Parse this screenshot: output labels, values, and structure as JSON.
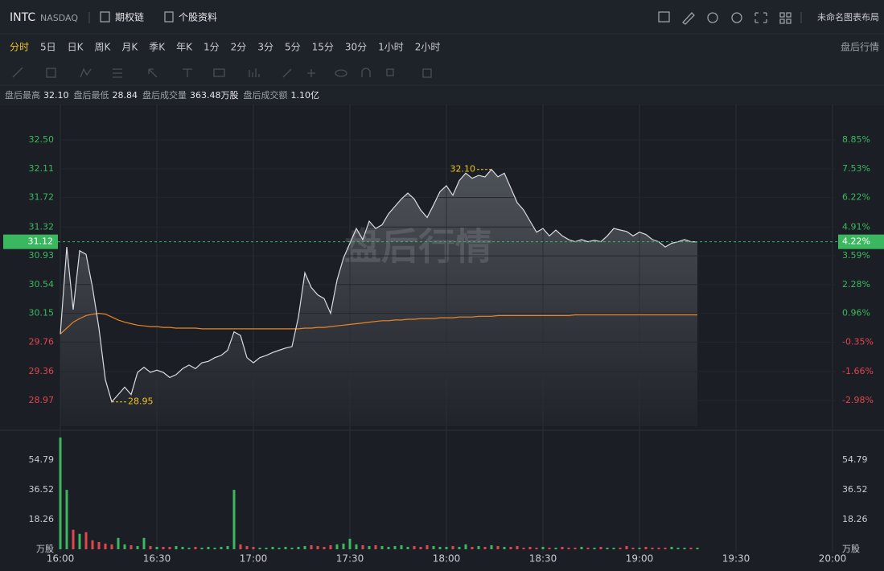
{
  "header": {
    "symbol": "INTC",
    "exchange": "NASDAQ",
    "links": [
      "期权链",
      "个股资料"
    ],
    "layout_name": "未命名图表布局"
  },
  "tabs": {
    "items": [
      "分时",
      "5日",
      "日K",
      "周K",
      "月K",
      "季K",
      "年K",
      "1分",
      "2分",
      "3分",
      "5分",
      "15分",
      "30分",
      "1小时",
      "2小时"
    ],
    "active": 0,
    "right": "盘后行情"
  },
  "info": [
    {
      "label": "盘后最高",
      "value": "32.10"
    },
    {
      "label": "盘后最低",
      "value": "28.84"
    },
    {
      "label": "盘后成交量",
      "value": "363.48万股"
    },
    {
      "label": "盘后成交额",
      "value": "1.10亿"
    }
  ],
  "chart_data": {
    "type": "line",
    "watermark": "盘后行情",
    "x": [
      "16:00",
      "16:02",
      "16:04",
      "16:06",
      "16:08",
      "16:10",
      "16:12",
      "16:14",
      "16:16",
      "16:18",
      "16:20",
      "16:22",
      "16:24",
      "16:26",
      "16:28",
      "16:30",
      "16:32",
      "16:34",
      "16:36",
      "16:38",
      "16:40",
      "16:42",
      "16:44",
      "16:46",
      "16:48",
      "16:50",
      "16:52",
      "16:54",
      "16:56",
      "16:58",
      "17:00",
      "17:02",
      "17:04",
      "17:06",
      "17:08",
      "17:10",
      "17:12",
      "17:14",
      "17:16",
      "17:18",
      "17:20",
      "17:22",
      "17:24",
      "17:26",
      "17:28",
      "17:30",
      "17:32",
      "17:34",
      "17:36",
      "17:38",
      "17:40",
      "17:42",
      "17:44",
      "17:46",
      "17:48",
      "17:50",
      "17:52",
      "17:54",
      "17:56",
      "17:58",
      "18:00",
      "18:02",
      "18:04",
      "18:06",
      "18:08",
      "18:10",
      "18:12",
      "18:14",
      "18:16",
      "18:18",
      "18:20",
      "18:22",
      "18:24",
      "18:26",
      "18:28",
      "18:30",
      "18:32",
      "18:34",
      "18:36",
      "18:38",
      "18:40",
      "18:42",
      "18:44",
      "18:46",
      "18:48",
      "18:50",
      "18:52",
      "18:54",
      "18:56",
      "18:58",
      "19:00",
      "19:02",
      "19:04",
      "19:06",
      "19:08",
      "19:10",
      "19:12",
      "19:14",
      "19:16",
      "19:18"
    ],
    "series": [
      {
        "name": "price",
        "color": "#d9dce0",
        "values": [
          29.87,
          31.05,
          30.2,
          31.0,
          30.95,
          30.5,
          29.95,
          29.25,
          28.95,
          29.05,
          29.15,
          29.05,
          29.35,
          29.42,
          29.35,
          29.38,
          29.35,
          29.28,
          29.32,
          29.4,
          29.45,
          29.4,
          29.48,
          29.5,
          29.55,
          29.58,
          29.65,
          29.9,
          29.85,
          29.55,
          29.48,
          29.55,
          29.58,
          29.62,
          29.65,
          29.68,
          29.7,
          30.1,
          30.7,
          30.5,
          30.4,
          30.35,
          30.15,
          30.6,
          30.9,
          31.1,
          31.3,
          31.15,
          31.4,
          31.3,
          31.35,
          31.5,
          31.6,
          31.7,
          31.78,
          31.7,
          31.55,
          31.45,
          31.62,
          31.8,
          31.88,
          31.75,
          31.95,
          32.05,
          31.98,
          32.02,
          32.0,
          32.1,
          32.0,
          32.05,
          31.85,
          31.65,
          31.55,
          31.4,
          31.25,
          31.3,
          31.2,
          31.28,
          31.2,
          31.15,
          31.12,
          31.15,
          31.12,
          31.14,
          31.12,
          31.2,
          31.3,
          31.28,
          31.26,
          31.2,
          31.25,
          31.22,
          31.15,
          31.12,
          31.05,
          31.1,
          31.12,
          31.15,
          31.12,
          31.12
        ]
      },
      {
        "name": "average",
        "color": "#e8862a",
        "values": [
          29.87,
          29.95,
          30.03,
          30.08,
          30.12,
          30.14,
          30.15,
          30.14,
          30.1,
          30.06,
          30.03,
          30.01,
          29.99,
          29.98,
          29.97,
          29.97,
          29.96,
          29.96,
          29.95,
          29.95,
          29.95,
          29.95,
          29.94,
          29.94,
          29.94,
          29.94,
          29.94,
          29.94,
          29.94,
          29.94,
          29.94,
          29.94,
          29.94,
          29.94,
          29.94,
          29.94,
          29.94,
          29.94,
          29.95,
          29.95,
          29.96,
          29.96,
          29.97,
          29.98,
          29.99,
          30.0,
          30.01,
          30.02,
          30.03,
          30.04,
          30.05,
          30.05,
          30.06,
          30.06,
          30.07,
          30.07,
          30.08,
          30.08,
          30.08,
          30.09,
          30.09,
          30.09,
          30.1,
          30.1,
          30.1,
          30.11,
          30.11,
          30.11,
          30.12,
          30.12,
          30.12,
          30.12,
          30.12,
          30.12,
          30.12,
          30.12,
          30.12,
          30.12,
          30.12,
          30.12,
          30.13,
          30.13,
          30.13,
          30.13,
          30.13,
          30.13,
          30.13,
          30.13,
          30.13,
          30.13,
          30.13,
          30.13,
          30.13,
          30.13,
          30.13,
          30.13,
          30.13,
          30.13,
          30.13,
          30.13
        ]
      }
    ],
    "volume": {
      "values": [
        68.6,
        36.5,
        12.0,
        9.5,
        10.5,
        5.5,
        4.5,
        3.5,
        3.0,
        7.0,
        3.0,
        2.5,
        2.0,
        7.0,
        2.0,
        1.5,
        1.5,
        1.5,
        2.0,
        1.5,
        1.0,
        1.5,
        1.0,
        1.5,
        1.0,
        1.5,
        2.0,
        36.5,
        3.0,
        2.0,
        1.5,
        1.0,
        1.0,
        1.5,
        1.0,
        1.5,
        1.0,
        1.5,
        2.0,
        2.5,
        2.0,
        1.5,
        2.5,
        3.0,
        3.5,
        6.5,
        3.0,
        2.5,
        2.0,
        2.5,
        2.0,
        1.5,
        2.0,
        2.5,
        1.5,
        2.0,
        1.5,
        2.5,
        2.0,
        1.5,
        1.5,
        2.0,
        1.5,
        3.0,
        1.5,
        2.0,
        1.5,
        2.5,
        2.0,
        1.5,
        1.5,
        2.0,
        1.0,
        1.5,
        1.0,
        1.5,
        1.0,
        1.0,
        1.5,
        1.0,
        1.0,
        1.5,
        1.0,
        1.0,
        1.5,
        1.0,
        1.0,
        1.0,
        2.0,
        1.0,
        1.0,
        1.5,
        1.0,
        1.0,
        1.0,
        1.5,
        1.0,
        1.0,
        1.0,
        1.0
      ],
      "ylim": [
        0,
        70.6
      ],
      "yticks": [
        {
          "value": 0,
          "label": "万股"
        },
        18.26,
        36.52,
        54.79
      ],
      "up_color": "#3bb85f",
      "down_color": "#e0464e"
    },
    "xlim": [
      "16:00",
      "20:00"
    ],
    "xticks": [
      "16:00",
      "16:30",
      "17:00",
      "17:30",
      "18:00",
      "18:30",
      "19:00",
      "19:30",
      "20:00"
    ],
    "ylim": [
      28.62,
      32.98
    ],
    "yticks": [
      {
        "value": 28.97,
        "label": "28.97"
      },
      29.36,
      29.76,
      30.15,
      30.54,
      30.93,
      31.32,
      31.72,
      32.11,
      {
        "value": 32.5,
        "label": "32.50"
      }
    ],
    "y2ticks": [
      {
        "value": -2.98,
        "label": "-2.98%"
      },
      {
        "value": -1.66,
        "label": "-1.66%"
      },
      {
        "value": -0.35,
        "label": "-0.35%"
      },
      {
        "value": 0.96,
        "label": "0.96%"
      },
      {
        "value": 2.28,
        "label": "2.28%"
      },
      {
        "value": 3.59,
        "label": "3.59%"
      },
      {
        "value": 4.91,
        "label": "4.91%"
      },
      {
        "value": 6.22,
        "label": "6.22%"
      },
      {
        "value": 7.53,
        "label": "7.53%"
      },
      {
        "value": 8.85,
        "label": "8.85%"
      }
    ],
    "last_price": 31.12,
    "last_change": {
      "value": 4.22,
      "label": "4.22%"
    },
    "annotations": [
      {
        "label": "32.10",
        "value": 32.1,
        "x": "18:14",
        "side": "left"
      },
      {
        "label": "28.95",
        "value": 28.95,
        "x": "16:16",
        "side": "right"
      }
    ],
    "grid": true,
    "up_color": "#3bb85f",
    "down_color": "#e0464e"
  }
}
